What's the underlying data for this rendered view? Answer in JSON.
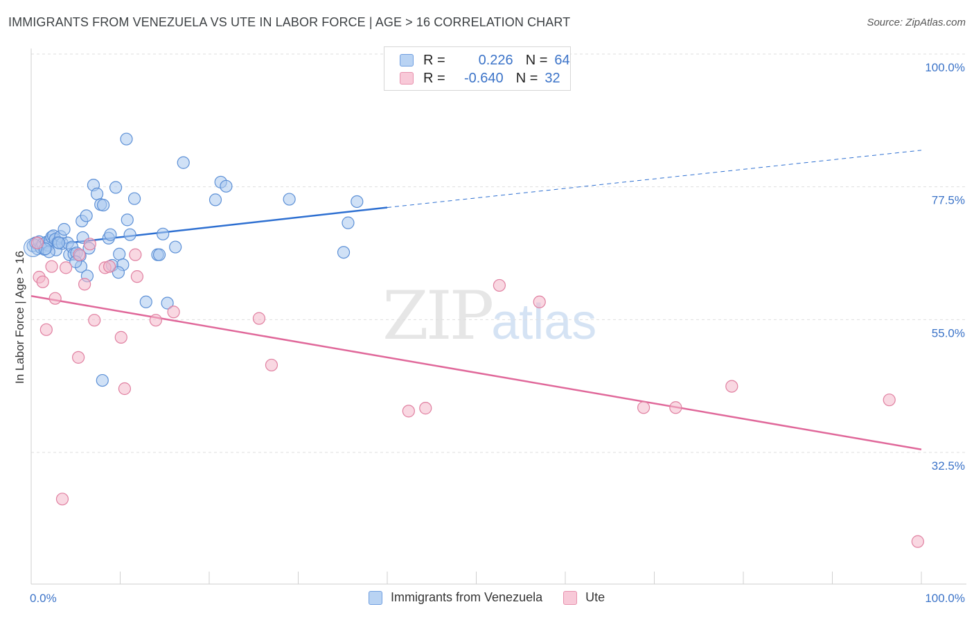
{
  "title": "IMMIGRANTS FROM VENEZUELA VS UTE IN LABOR FORCE | AGE > 16 CORRELATION CHART",
  "source": "Source: ZipAtlas.com",
  "watermark": {
    "zip": "ZIP",
    "atlas": "atlas"
  },
  "legend": {
    "rows": [
      {
        "r_label": "R =",
        "r_value": "0.226",
        "n_label": "N =",
        "n_value": "64"
      },
      {
        "r_label": "R =",
        "r_value": "-0.640",
        "n_label": "N =",
        "n_value": "32"
      }
    ]
  },
  "bottom_legend": {
    "series1": "Immigrants from Venezuela",
    "series2": "Ute"
  },
  "colors": {
    "blue_fill": "#a9c8ef",
    "blue_stroke": "#5b8fd6",
    "blue_line": "#2d6fd1",
    "pink_fill": "#f4b8cb",
    "pink_stroke": "#e07fa0",
    "pink_line": "#e0689a",
    "grid": "#dedede",
    "tick_label": "#3b73c8"
  },
  "chart_data": {
    "type": "scatter",
    "title": "IMMIGRANTS FROM VENEZUELA VS UTE IN LABOR FORCE | AGE > 16 CORRELATION CHART",
    "xlabel": "",
    "ylabel": "In Labor Force | Age > 16",
    "xlim": [
      0,
      100
    ],
    "ylim": [
      10,
      102
    ],
    "x_tick_labels": [
      "0.0%",
      "100.0%"
    ],
    "y_ticks": [
      32.5,
      55.0,
      77.5,
      100.0
    ],
    "y_tick_labels": [
      "32.5%",
      "55.0%",
      "77.5%",
      "100.0%"
    ],
    "grid": true,
    "series": [
      {
        "name": "Immigrants from Venezuela",
        "color": "blue",
        "points": [
          [
            0.2,
            67.5
          ],
          [
            0.5,
            68.0
          ],
          [
            0.7,
            67.0
          ],
          [
            0.9,
            68.2
          ],
          [
            1.1,
            67.2
          ],
          [
            1.3,
            67.8
          ],
          [
            1.5,
            66.9
          ],
          [
            1.7,
            68.1
          ],
          [
            1.9,
            67.6
          ],
          [
            2.1,
            68.4
          ],
          [
            2.3,
            69.0
          ],
          [
            2.5,
            69.2
          ],
          [
            2.7,
            68.6
          ],
          [
            2.8,
            66.8
          ],
          [
            3.0,
            68.1
          ],
          [
            3.3,
            69.1
          ],
          [
            3.5,
            67.9
          ],
          [
            3.7,
            70.3
          ],
          [
            4.1,
            68.0
          ],
          [
            4.3,
            66.0
          ],
          [
            4.6,
            67.3
          ],
          [
            4.8,
            66.1
          ],
          [
            5.1,
            66.3
          ],
          [
            5.5,
            65.8
          ],
          [
            5.6,
            64.0
          ],
          [
            5.7,
            71.7
          ],
          [
            5.8,
            68.9
          ],
          [
            6.2,
            72.6
          ],
          [
            6.5,
            67.1
          ],
          [
            6.3,
            62.4
          ],
          [
            7.0,
            77.8
          ],
          [
            7.4,
            76.3
          ],
          [
            7.8,
            74.5
          ],
          [
            8.1,
            74.4
          ],
          [
            8.7,
            68.8
          ],
          [
            8.9,
            69.4
          ],
          [
            9.1,
            64.2
          ],
          [
            9.5,
            77.4
          ],
          [
            9.9,
            66.1
          ],
          [
            10.3,
            64.3
          ],
          [
            10.7,
            85.6
          ],
          [
            10.8,
            71.9
          ],
          [
            11.1,
            69.4
          ],
          [
            11.6,
            75.5
          ],
          [
            12.9,
            58.0
          ],
          [
            14.2,
            66.0
          ],
          [
            14.4,
            66.0
          ],
          [
            14.8,
            69.5
          ],
          [
            15.3,
            57.8
          ],
          [
            16.2,
            67.3
          ],
          [
            17.1,
            81.6
          ],
          [
            20.7,
            75.3
          ],
          [
            21.3,
            78.3
          ],
          [
            21.9,
            77.6
          ],
          [
            29.0,
            75.4
          ],
          [
            35.1,
            66.4
          ],
          [
            35.6,
            71.4
          ],
          [
            36.6,
            75.0
          ],
          [
            8.0,
            44.7
          ],
          [
            5.0,
            64.8
          ],
          [
            3.1,
            68.0
          ],
          [
            2.0,
            66.5
          ],
          [
            1.6,
            67.0
          ],
          [
            9.8,
            63.0
          ]
        ]
      },
      {
        "name": "Ute",
        "color": "pink",
        "points": [
          [
            0.7,
            68.0
          ],
          [
            0.9,
            62.2
          ],
          [
            1.3,
            61.4
          ],
          [
            1.7,
            53.3
          ],
          [
            2.3,
            64.0
          ],
          [
            2.7,
            58.6
          ],
          [
            3.5,
            24.6
          ],
          [
            3.9,
            63.8
          ],
          [
            5.3,
            48.6
          ],
          [
            6.0,
            61.0
          ],
          [
            6.6,
            67.8
          ],
          [
            7.1,
            54.9
          ],
          [
            8.3,
            63.8
          ],
          [
            8.8,
            64.0
          ],
          [
            10.1,
            52.0
          ],
          [
            10.5,
            43.3
          ],
          [
            11.7,
            66.0
          ],
          [
            11.9,
            62.3
          ],
          [
            14.0,
            54.9
          ],
          [
            16.0,
            56.3
          ],
          [
            25.6,
            55.2
          ],
          [
            27.0,
            47.3
          ],
          [
            42.4,
            39.5
          ],
          [
            44.3,
            40.0
          ],
          [
            52.6,
            60.8
          ],
          [
            57.1,
            58.0
          ],
          [
            68.8,
            40.1
          ],
          [
            72.4,
            40.1
          ],
          [
            78.7,
            43.7
          ],
          [
            96.4,
            41.4
          ],
          [
            99.6,
            17.4
          ],
          [
            5.4,
            66.0
          ]
        ]
      }
    ],
    "trend_lines": [
      {
        "name": "Immigrants from Venezuela",
        "x": [
          0,
          40
        ],
        "y": [
          67.3,
          74.0
        ],
        "extended_to": [
          100,
          83.7
        ]
      },
      {
        "name": "Ute",
        "x": [
          0,
          100
        ],
        "y": [
          59.0,
          33.0
        ]
      }
    ]
  },
  "y_axis_title": "In Labor Force | Age > 16"
}
